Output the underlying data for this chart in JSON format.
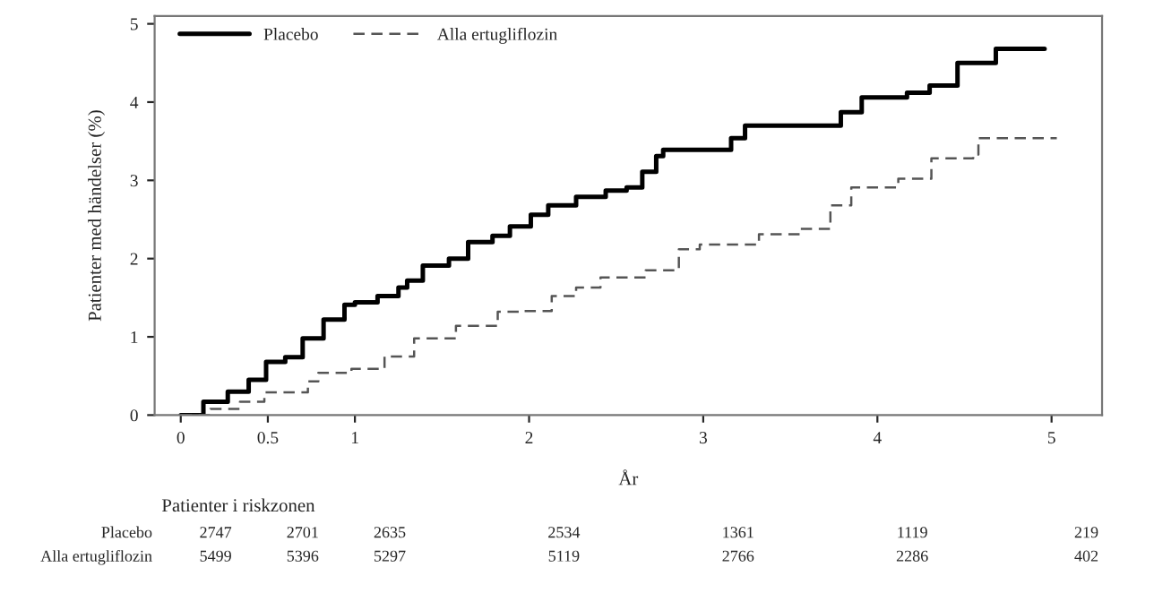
{
  "chart_data": {
    "type": "step",
    "xlabel": "År",
    "ylabel": "Patienter med händelser (%)",
    "xlim": [
      -0.15,
      5.29
    ],
    "ylim": [
      0,
      5.1
    ],
    "xticks": [
      0,
      0.5,
      1,
      2,
      3,
      4,
      5
    ],
    "yticks": [
      0,
      1,
      2,
      3,
      4,
      5
    ],
    "grid": false,
    "legend": "top left",
    "series": [
      {
        "name": "Placebo",
        "color": "#000000",
        "line_style": "solid",
        "x": [
          0,
          0.13,
          0.27,
          0.39,
          0.49,
          0.6,
          0.7,
          0.82,
          0.94,
          1.0,
          1.13,
          1.25,
          1.3,
          1.39,
          1.54,
          1.65,
          1.79,
          1.89,
          2.01,
          2.11,
          2.25,
          2.27,
          2.44,
          2.56,
          2.65,
          2.73,
          2.77,
          3.09,
          3.16,
          3.24,
          3.69,
          3.79,
          3.91,
          4.17,
          4.3,
          4.46,
          4.68,
          4.96
        ],
        "values": [
          0,
          0.17,
          0.3,
          0.45,
          0.68,
          0.74,
          0.98,
          1.22,
          1.41,
          1.44,
          1.52,
          1.63,
          1.72,
          1.91,
          2.0,
          2.21,
          2.29,
          2.41,
          2.56,
          2.68,
          2.68,
          2.79,
          2.87,
          2.91,
          3.11,
          3.31,
          3.39,
          3.39,
          3.54,
          3.7,
          3.7,
          3.87,
          4.06,
          4.12,
          4.21,
          4.5,
          4.68,
          4.68
        ]
      },
      {
        "name": "Alla ertugliflozin",
        "color": "#555555",
        "line_style": "dashed",
        "x": [
          0,
          0.17,
          0.34,
          0.48,
          0.73,
          0.79,
          0.98,
          1.17,
          1.34,
          1.58,
          1.82,
          1.96,
          2.13,
          2.27,
          2.41,
          2.67,
          2.86,
          2.98,
          3.2,
          3.32,
          3.56,
          3.73,
          3.85,
          4.12,
          4.31,
          4.55,
          4.58,
          5.03
        ],
        "values": [
          0,
          0.08,
          0.17,
          0.29,
          0.43,
          0.54,
          0.59,
          0.75,
          0.98,
          1.14,
          1.32,
          1.33,
          1.52,
          1.63,
          1.76,
          1.85,
          2.12,
          2.18,
          2.18,
          2.31,
          2.38,
          2.68,
          2.91,
          3.02,
          3.28,
          3.33,
          3.54,
          3.54
        ]
      }
    ],
    "annotations": [
      "Patienter i riskzonen",
      "Placebo",
      "2747",
      "2701",
      "2635",
      "2534",
      "1361",
      "1119",
      "219",
      "Alla ertugliflozin",
      "5499",
      "5396",
      "5297",
      "5119",
      "2766",
      "2286",
      "402"
    ]
  }
}
